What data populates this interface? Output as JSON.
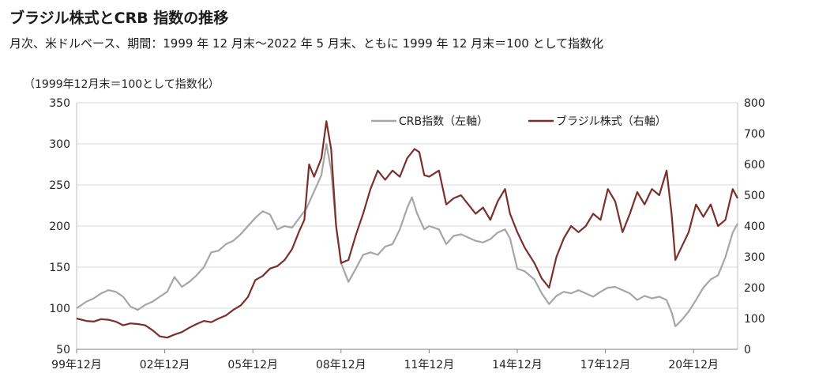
{
  "chart_data": {
    "type": "line",
    "title": "ブラジル株式とCRB 指数の推移",
    "subtitle": "月次、米ドルベース、期間：1999 年 12 月末～2022 年 5 月末、ともに 1999 年 12 月末＝100 として指数化",
    "unit_label": "（1999年12月末＝100として指数化）",
    "x_tick_labels": [
      "99年12月",
      "02年12月",
      "05年12月",
      "08年12月",
      "11年12月",
      "14年12月",
      "17年12月",
      "20年12月"
    ],
    "x_tick_years": [
      1999.917,
      2002.917,
      2005.917,
      2008.917,
      2011.917,
      2014.917,
      2017.917,
      2020.917
    ],
    "xlim": [
      1999.917,
      2022.417
    ],
    "left_axis": {
      "ylim": [
        50,
        350
      ],
      "ticks": [
        50,
        100,
        150,
        200,
        250,
        300,
        350
      ]
    },
    "right_axis": {
      "ylim": [
        0,
        800
      ],
      "ticks": [
        0,
        100,
        200,
        300,
        400,
        500,
        600,
        700,
        800
      ]
    },
    "legend_position": "top-right",
    "grid": true,
    "series": [
      {
        "name": "CRB指数（左軸）",
        "axis": "left",
        "color": "#a6a6a6",
        "points": [
          [
            1999.917,
            100
          ],
          [
            2000.25,
            108
          ],
          [
            2000.5,
            112
          ],
          [
            2000.75,
            118
          ],
          [
            2001.0,
            122
          ],
          [
            2001.25,
            120
          ],
          [
            2001.5,
            114
          ],
          [
            2001.75,
            102
          ],
          [
            2002.0,
            98
          ],
          [
            2002.25,
            104
          ],
          [
            2002.5,
            108
          ],
          [
            2002.75,
            114
          ],
          [
            2003.0,
            120
          ],
          [
            2003.25,
            138
          ],
          [
            2003.5,
            126
          ],
          [
            2003.75,
            132
          ],
          [
            2004.0,
            140
          ],
          [
            2004.25,
            150
          ],
          [
            2004.5,
            168
          ],
          [
            2004.75,
            170
          ],
          [
            2005.0,
            178
          ],
          [
            2005.25,
            182
          ],
          [
            2005.5,
            190
          ],
          [
            2005.75,
            200
          ],
          [
            2006.0,
            210
          ],
          [
            2006.25,
            218
          ],
          [
            2006.5,
            214
          ],
          [
            2006.75,
            196
          ],
          [
            2007.0,
            200
          ],
          [
            2007.25,
            198
          ],
          [
            2007.5,
            210
          ],
          [
            2007.75,
            222
          ],
          [
            2008.0,
            242
          ],
          [
            2008.25,
            262
          ],
          [
            2008.42,
            300
          ],
          [
            2008.58,
            268
          ],
          [
            2008.75,
            200
          ],
          [
            2008.92,
            155
          ],
          [
            2009.17,
            132
          ],
          [
            2009.42,
            148
          ],
          [
            2009.67,
            165
          ],
          [
            2009.92,
            168
          ],
          [
            2010.17,
            165
          ],
          [
            2010.42,
            175
          ],
          [
            2010.67,
            178
          ],
          [
            2010.92,
            196
          ],
          [
            2011.17,
            222
          ],
          [
            2011.33,
            235
          ],
          [
            2011.5,
            216
          ],
          [
            2011.75,
            196
          ],
          [
            2011.92,
            200
          ],
          [
            2012.25,
            196
          ],
          [
            2012.5,
            178
          ],
          [
            2012.75,
            188
          ],
          [
            2013.0,
            190
          ],
          [
            2013.25,
            186
          ],
          [
            2013.5,
            182
          ],
          [
            2013.75,
            180
          ],
          [
            2014.0,
            184
          ],
          [
            2014.25,
            192
          ],
          [
            2014.5,
            196
          ],
          [
            2014.67,
            185
          ],
          [
            2014.92,
            148
          ],
          [
            2015.17,
            145
          ],
          [
            2015.5,
            135
          ],
          [
            2015.75,
            118
          ],
          [
            2016.0,
            105
          ],
          [
            2016.25,
            115
          ],
          [
            2016.5,
            120
          ],
          [
            2016.75,
            118
          ],
          [
            2017.0,
            122
          ],
          [
            2017.25,
            118
          ],
          [
            2017.5,
            114
          ],
          [
            2017.75,
            120
          ],
          [
            2018.0,
            125
          ],
          [
            2018.25,
            126
          ],
          [
            2018.5,
            122
          ],
          [
            2018.75,
            118
          ],
          [
            2019.0,
            110
          ],
          [
            2019.25,
            115
          ],
          [
            2019.5,
            112
          ],
          [
            2019.75,
            114
          ],
          [
            2020.0,
            110
          ],
          [
            2020.17,
            95
          ],
          [
            2020.3,
            78
          ],
          [
            2020.5,
            85
          ],
          [
            2020.75,
            96
          ],
          [
            2021.0,
            110
          ],
          [
            2021.25,
            125
          ],
          [
            2021.5,
            135
          ],
          [
            2021.75,
            140
          ],
          [
            2022.0,
            162
          ],
          [
            2022.25,
            192
          ],
          [
            2022.417,
            203
          ]
        ]
      },
      {
        "name": "ブラジル株式（右軸）",
        "axis": "right",
        "color": "#7b2f2a",
        "points": [
          [
            1999.917,
            100
          ],
          [
            2000.25,
            92
          ],
          [
            2000.5,
            90
          ],
          [
            2000.75,
            98
          ],
          [
            2001.0,
            96
          ],
          [
            2001.25,
            90
          ],
          [
            2001.5,
            78
          ],
          [
            2001.75,
            84
          ],
          [
            2002.0,
            82
          ],
          [
            2002.25,
            78
          ],
          [
            2002.5,
            62
          ],
          [
            2002.75,
            42
          ],
          [
            2003.0,
            38
          ],
          [
            2003.25,
            48
          ],
          [
            2003.5,
            56
          ],
          [
            2003.75,
            70
          ],
          [
            2004.0,
            82
          ],
          [
            2004.25,
            92
          ],
          [
            2004.5,
            88
          ],
          [
            2004.75,
            100
          ],
          [
            2005.0,
            110
          ],
          [
            2005.25,
            128
          ],
          [
            2005.5,
            142
          ],
          [
            2005.75,
            170
          ],
          [
            2006.0,
            225
          ],
          [
            2006.25,
            238
          ],
          [
            2006.5,
            262
          ],
          [
            2006.75,
            270
          ],
          [
            2007.0,
            290
          ],
          [
            2007.25,
            325
          ],
          [
            2007.5,
            385
          ],
          [
            2007.67,
            420
          ],
          [
            2007.83,
            600
          ],
          [
            2008.0,
            560
          ],
          [
            2008.25,
            620
          ],
          [
            2008.42,
            740
          ],
          [
            2008.58,
            650
          ],
          [
            2008.75,
            400
          ],
          [
            2008.92,
            280
          ],
          [
            2009.17,
            290
          ],
          [
            2009.42,
            370
          ],
          [
            2009.67,
            440
          ],
          [
            2009.92,
            520
          ],
          [
            2010.17,
            580
          ],
          [
            2010.42,
            550
          ],
          [
            2010.67,
            580
          ],
          [
            2010.92,
            560
          ],
          [
            2011.17,
            620
          ],
          [
            2011.42,
            650
          ],
          [
            2011.58,
            640
          ],
          [
            2011.75,
            565
          ],
          [
            2011.92,
            560
          ],
          [
            2012.25,
            580
          ],
          [
            2012.5,
            470
          ],
          [
            2012.75,
            490
          ],
          [
            2013.0,
            500
          ],
          [
            2013.25,
            470
          ],
          [
            2013.5,
            440
          ],
          [
            2013.75,
            460
          ],
          [
            2014.0,
            420
          ],
          [
            2014.25,
            480
          ],
          [
            2014.5,
            520
          ],
          [
            2014.67,
            440
          ],
          [
            2014.92,
            380
          ],
          [
            2015.17,
            330
          ],
          [
            2015.5,
            280
          ],
          [
            2015.75,
            230
          ],
          [
            2016.0,
            200
          ],
          [
            2016.25,
            300
          ],
          [
            2016.5,
            360
          ],
          [
            2016.75,
            400
          ],
          [
            2017.0,
            380
          ],
          [
            2017.25,
            400
          ],
          [
            2017.5,
            440
          ],
          [
            2017.75,
            420
          ],
          [
            2018.0,
            520
          ],
          [
            2018.25,
            480
          ],
          [
            2018.5,
            380
          ],
          [
            2018.75,
            440
          ],
          [
            2019.0,
            510
          ],
          [
            2019.25,
            470
          ],
          [
            2019.5,
            520
          ],
          [
            2019.75,
            500
          ],
          [
            2020.0,
            580
          ],
          [
            2020.17,
            440
          ],
          [
            2020.3,
            290
          ],
          [
            2020.5,
            330
          ],
          [
            2020.75,
            380
          ],
          [
            2021.0,
            470
          ],
          [
            2021.25,
            430
          ],
          [
            2021.5,
            470
          ],
          [
            2021.75,
            400
          ],
          [
            2022.0,
            420
          ],
          [
            2022.25,
            520
          ],
          [
            2022.417,
            490
          ]
        ]
      }
    ]
  }
}
